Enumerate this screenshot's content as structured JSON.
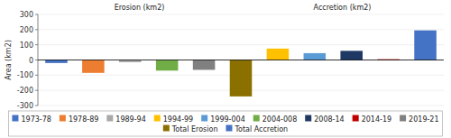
{
  "chart_data": {
    "type": "bar",
    "ylabel": "Area (km2)",
    "annotations": [
      "Erosion (km2)",
      "Accretion (km2)"
    ],
    "categories": [
      null,
      null,
      null,
      null,
      null,
      null,
      null,
      null,
      null,
      null,
      null
    ],
    "series": [
      {
        "name": "1973-78",
        "color": "#4472C4",
        "values": [
          -20,
          null,
          null,
          null,
          null,
          null,
          null,
          null,
          null,
          null,
          null
        ]
      },
      {
        "name": "1978-89",
        "color": "#ED7D31",
        "values": [
          null,
          -85,
          null,
          null,
          null,
          null,
          null,
          null,
          null,
          null,
          null
        ]
      },
      {
        "name": "1989-94",
        "color": "#A9A9A9",
        "values": [
          null,
          null,
          -15,
          null,
          null,
          null,
          null,
          null,
          null,
          null,
          null
        ]
      },
      {
        "name": "1994-99",
        "color": "#FFC000",
        "values": [
          null,
          null,
          null,
          null,
          null,
          null,
          75,
          null,
          null,
          null,
          null
        ]
      },
      {
        "name": "1999-004",
        "color": "#5B9BD5",
        "values": [
          null,
          null,
          null,
          null,
          null,
          null,
          null,
          45,
          null,
          null,
          null
        ]
      },
      {
        "name": "2004-008",
        "color": "#70AD47",
        "values": [
          null,
          null,
          null,
          -70,
          null,
          null,
          null,
          null,
          null,
          null,
          null
        ]
      },
      {
        "name": "2008-14",
        "color": "#1F3864",
        "values": [
          null,
          null,
          null,
          null,
          null,
          null,
          null,
          null,
          60,
          null,
          null
        ]
      },
      {
        "name": "2014-19",
        "color": "#C00000",
        "values": [
          null,
          null,
          null,
          null,
          null,
          null,
          null,
          null,
          null,
          5,
          null
        ]
      },
      {
        "name": "2019-21",
        "color": "#808080",
        "values": [
          null,
          null,
          null,
          null,
          -65,
          null,
          null,
          null,
          null,
          null,
          null
        ]
      },
      {
        "name": "Total Erosion",
        "color": "#8B7000",
        "values": [
          null,
          null,
          null,
          null,
          null,
          -240,
          null,
          null,
          null,
          null,
          null
        ]
      },
      {
        "name": "Total Accretion",
        "color": "#4472C4",
        "values": [
          null,
          null,
          null,
          null,
          null,
          null,
          null,
          null,
          null,
          null,
          195
        ]
      }
    ],
    "ylim": [
      -300,
      300
    ],
    "yticks": [
      -300,
      -200,
      -100,
      0,
      100,
      200,
      300
    ],
    "tick_labels": "y",
    "legend": "bottom"
  }
}
